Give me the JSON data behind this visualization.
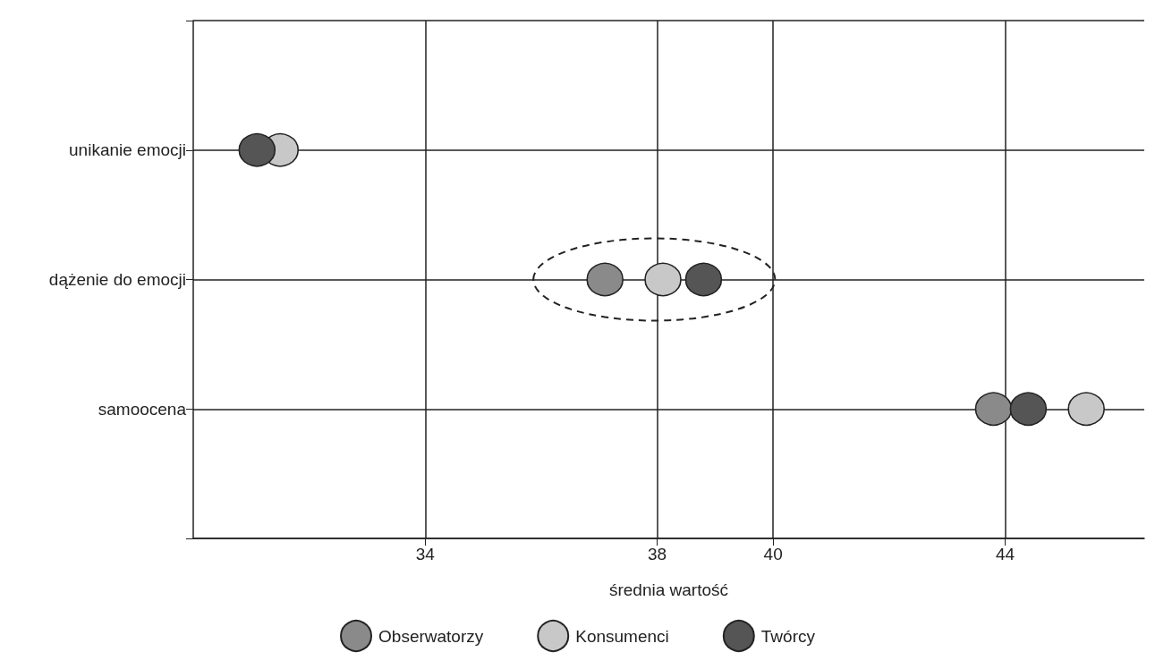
{
  "chart_data": {
    "type": "scatter",
    "orientation": "horizontal",
    "xlabel": "średnia wartość",
    "categories": [
      "unikanie emocji",
      "dążenie do emocji",
      "samoocena"
    ],
    "series": [
      {
        "name": "Obserwatorzy",
        "color": "#8a8a8a",
        "values": [
          null,
          37.1,
          43.8
        ]
      },
      {
        "name": "Konsumenci",
        "color": "#c8c8c8",
        "values": [
          31.5,
          38.1,
          45.4
        ]
      },
      {
        "name": "Twórcy",
        "color": "#555555",
        "values": [
          31.1,
          38.8,
          44.4
        ]
      }
    ],
    "xlim": [
      30,
      46.4
    ],
    "xticks": [
      34,
      38,
      40,
      44
    ],
    "grid": true,
    "legend": "bottom",
    "marker": "circle"
  }
}
